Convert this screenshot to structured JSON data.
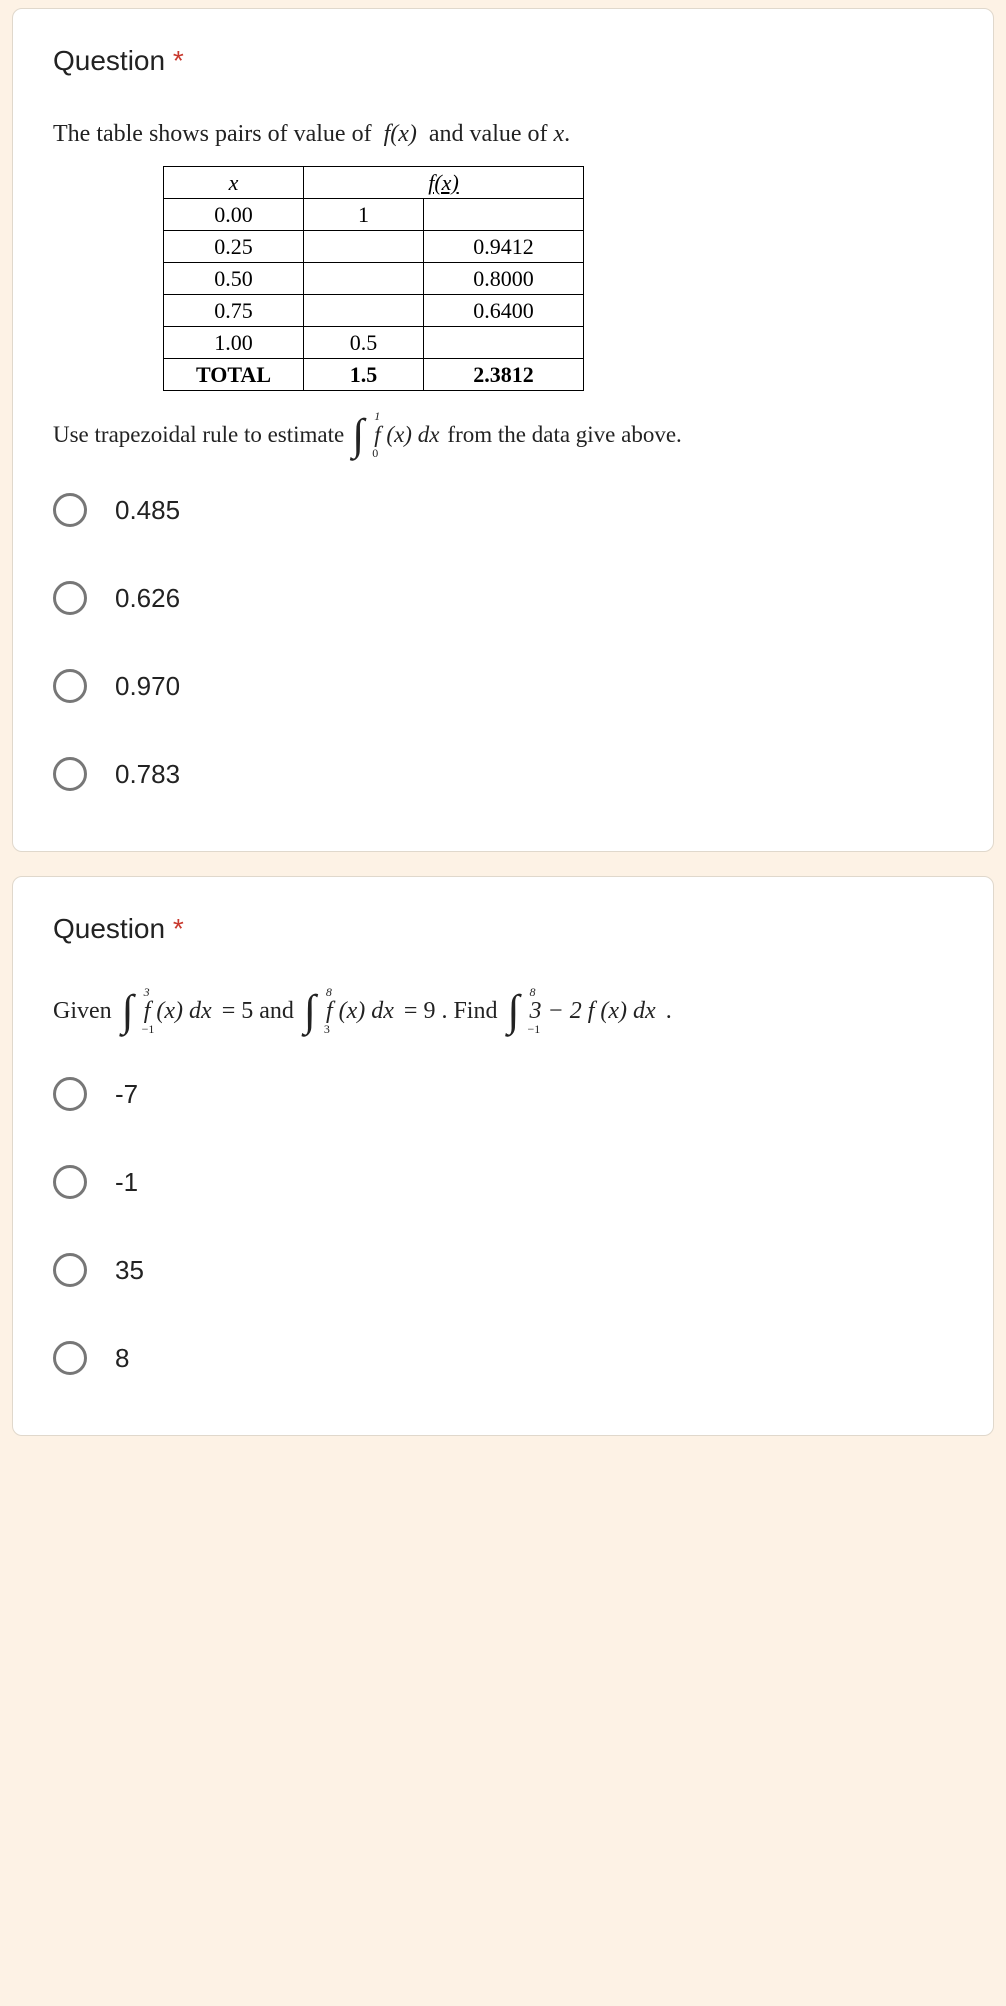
{
  "q1": {
    "title": "Question",
    "asterisk": "*",
    "intro": "The table shows pairs of value of  f(x)  and value of x.",
    "table": {
      "head_x": "x",
      "head_fx": "f(x)",
      "rows": [
        {
          "x": "0.00",
          "f1": "1",
          "f2": ""
        },
        {
          "x": "0.25",
          "f1": "",
          "f2": "0.9412"
        },
        {
          "x": "0.50",
          "f1": "",
          "f2": "0.8000"
        },
        {
          "x": "0.75",
          "f1": "",
          "f2": "0.6400"
        },
        {
          "x": "1.00",
          "f1": "0.5",
          "f2": ""
        }
      ],
      "total_label": "TOTAL",
      "total_f1": "1.5",
      "total_f2": "2.3812"
    },
    "trap_pre": "Use trapezoidal rule to estimate",
    "trap_int_upper": "1",
    "trap_int_lower": "0",
    "trap_int_body": "f (x) dx",
    "trap_post": "from the data give above.",
    "options": [
      "0.485",
      "0.626",
      "0.970",
      "0.783"
    ]
  },
  "q2": {
    "title": "Question",
    "asterisk": "*",
    "given": "Given",
    "int1_upper": "3",
    "int1_lower": "−1",
    "int1_body": "f (x) dx",
    "eq1": " = 5  and",
    "int2_upper": "8",
    "int2_lower": "3",
    "int2_body": "f (x) dx",
    "eq2": " = 9 . Find",
    "int3_upper": "8",
    "int3_lower": "−1",
    "int3_body": "3 − 2 f (x) dx",
    "eq3": " .",
    "options": [
      "-7",
      "-1",
      "35",
      "8"
    ]
  },
  "colors": {
    "page_bg": "#fdf2e5",
    "card_bg": "#ffffff",
    "card_border": "#e0d8cc",
    "text": "#222222",
    "asterisk": "#c8392e",
    "radio_border": "#777777",
    "table_border": "#000000"
  }
}
